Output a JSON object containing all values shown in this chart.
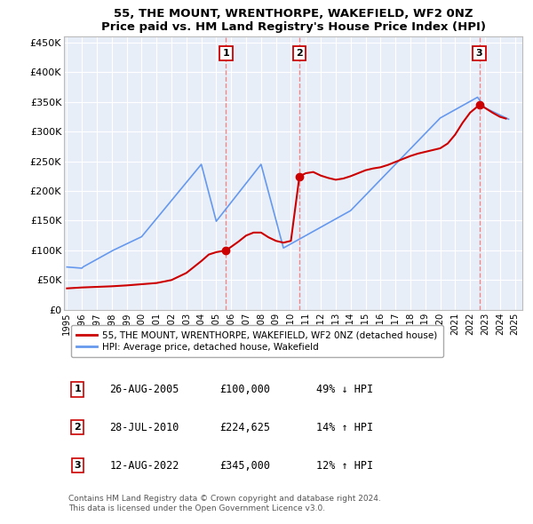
{
  "title": "55, THE MOUNT, WRENTHORPE, WAKEFIELD, WF2 0NZ",
  "subtitle": "Price paid vs. HM Land Registry's House Price Index (HPI)",
  "yticks": [
    0,
    50000,
    100000,
    150000,
    200000,
    250000,
    300000,
    350000,
    400000,
    450000
  ],
  "ytick_labels": [
    "£0",
    "£50K",
    "£100K",
    "£150K",
    "£200K",
    "£250K",
    "£300K",
    "£350K",
    "£400K",
    "£450K"
  ],
  "ylim": [
    0,
    460000
  ],
  "xlim_start": 1994.8,
  "xlim_end": 2025.5,
  "xticks": [
    1995,
    1996,
    1997,
    1998,
    1999,
    2000,
    2001,
    2002,
    2003,
    2004,
    2005,
    2006,
    2007,
    2008,
    2009,
    2010,
    2011,
    2012,
    2013,
    2014,
    2015,
    2016,
    2017,
    2018,
    2019,
    2020,
    2021,
    2022,
    2023,
    2024,
    2025
  ],
  "sale_dates": [
    2005.65,
    2010.57,
    2022.62
  ],
  "sale_prices": [
    100000,
    224625,
    345000
  ],
  "sale_labels": [
    "1",
    "2",
    "3"
  ],
  "hpi_color": "#6699EE",
  "price_color": "#CC0000",
  "background_plot": "#e8eef8",
  "background_fig": "#ffffff",
  "grid_color": "#ffffff",
  "legend_label_price": "55, THE MOUNT, WRENTHORPE, WAKEFIELD, WF2 0NZ (detached house)",
  "legend_label_hpi": "HPI: Average price, detached house, Wakefield",
  "table_entries": [
    {
      "num": "1",
      "date": "26-AUG-2005",
      "price": "£100,000",
      "hpi_rel": "49% ↓ HPI"
    },
    {
      "num": "2",
      "date": "28-JUL-2010",
      "price": "£224,625",
      "hpi_rel": "14% ↑ HPI"
    },
    {
      "num": "3",
      "date": "12-AUG-2022",
      "price": "£345,000",
      "hpi_rel": "12% ↑ HPI"
    }
  ],
  "footer": "Contains HM Land Registry data © Crown copyright and database right 2024.\nThis data is licensed under the Open Government Licence v3.0."
}
